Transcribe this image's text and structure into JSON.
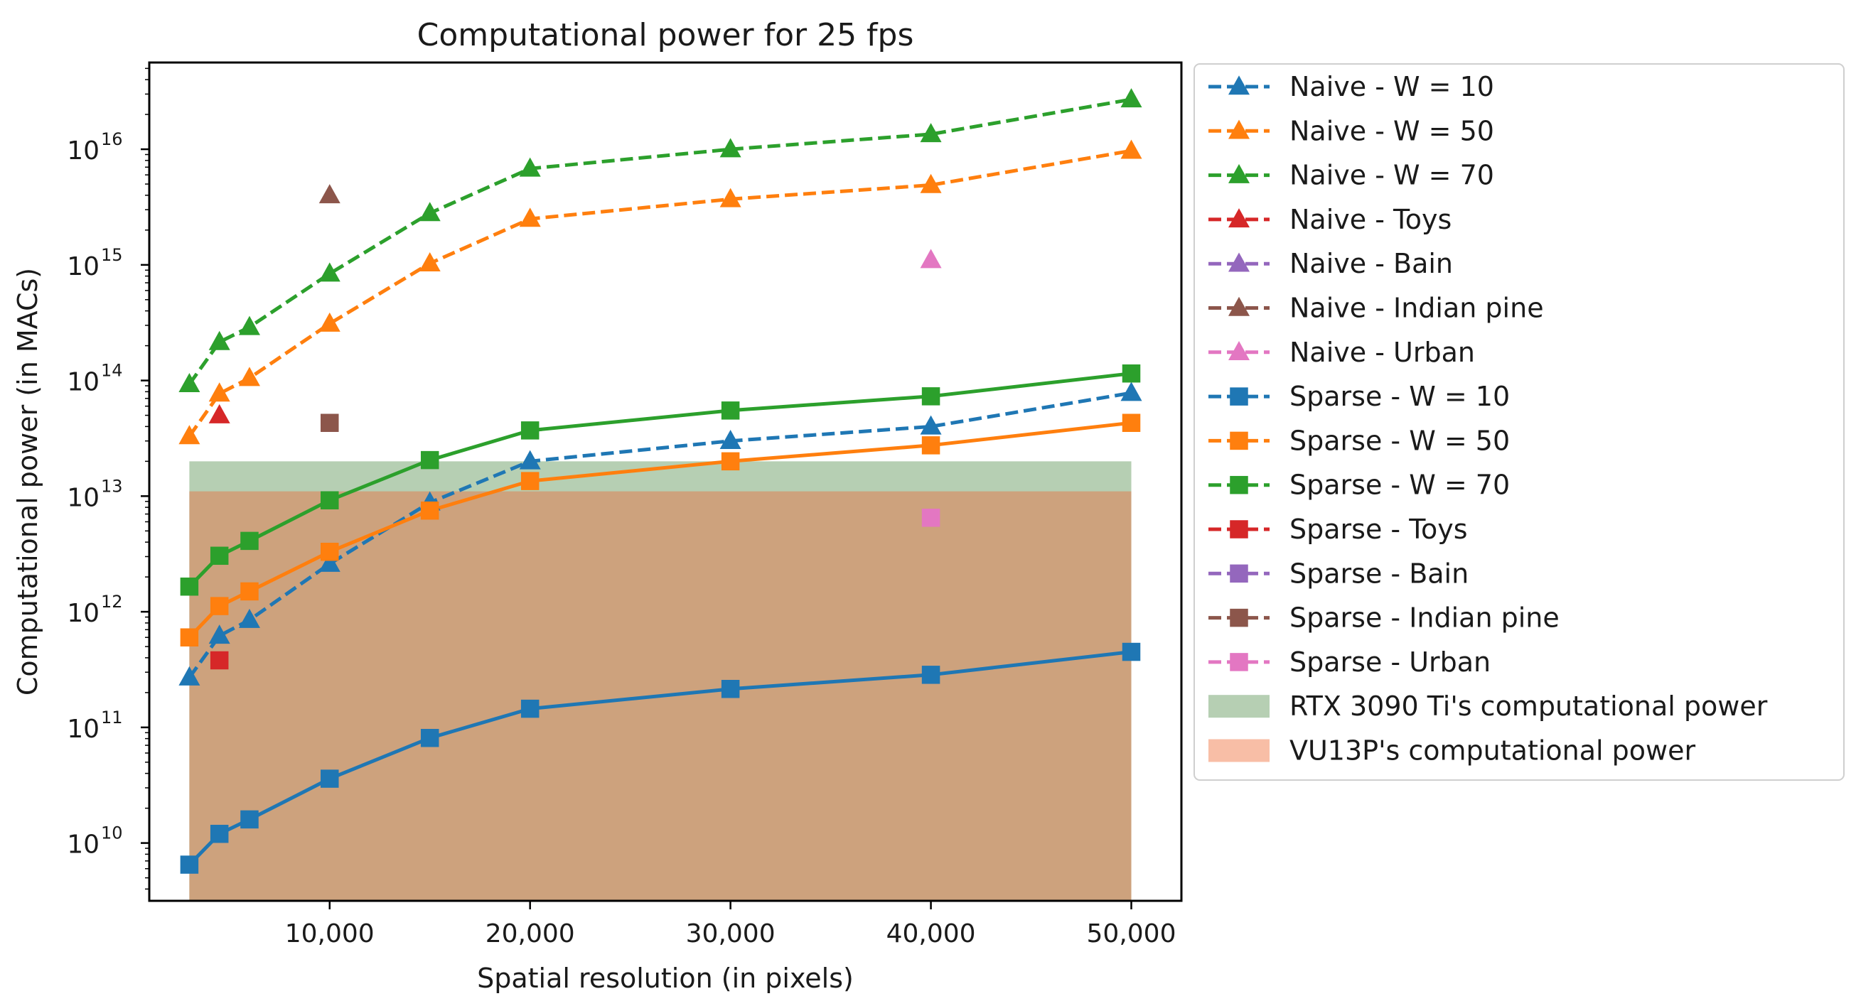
{
  "chart_data": {
    "type": "line",
    "title": "Computational power for 25 fps",
    "xlabel": "Spatial resolution (in pixels)",
    "ylabel": "Computational power (in MACs)",
    "xscale": "linear",
    "yscale": "log",
    "xlim": [
      1000,
      52500
    ],
    "ylim_log10": [
      9.5,
      16.75
    ],
    "xticks": [
      10000,
      20000,
      30000,
      40000,
      50000
    ],
    "xtick_labels": [
      "10,000",
      "20,000",
      "30,000",
      "40,000",
      "50,000"
    ],
    "yticks": [
      {
        "base": "10",
        "exp": "10",
        "value": 10000000000.0
      },
      {
        "base": "10",
        "exp": "11",
        "value": 100000000000.0
      },
      {
        "base": "10",
        "exp": "12",
        "value": 1000000000000.0
      },
      {
        "base": "10",
        "exp": "13",
        "value": 10000000000000.0
      },
      {
        "base": "10",
        "exp": "14",
        "value": 100000000000000.0
      },
      {
        "base": "10",
        "exp": "15",
        "value": 1000000000000000.0
      },
      {
        "base": "10",
        "exp": "16",
        "value": 1e+16
      }
    ],
    "grid": false,
    "legend_position": "outside-right",
    "series": [
      {
        "name": "Naive - W = 10",
        "color": "#1f77b4",
        "marker": "triangle",
        "line": "dashed",
        "x": [
          3000,
          4500,
          6000,
          10000,
          15000,
          20000,
          30000,
          40000,
          50000
        ],
        "y": [
          270000000000.0,
          620000000000.0,
          850000000000.0,
          2600000000000.0,
          8800000000000.0,
          20000000000000.0,
          30000000000000.0,
          40000000000000.0,
          78000000000000.0
        ]
      },
      {
        "name": "Naive - W = 50",
        "color": "#ff7f0e",
        "marker": "triangle",
        "line": "dashed",
        "x": [
          3000,
          4500,
          6000,
          10000,
          15000,
          20000,
          30000,
          40000,
          50000
        ],
        "y": [
          33000000000000.0,
          77000000000000.0,
          105000000000000.0,
          310000000000000.0,
          1030000000000000.0,
          2500000000000000.0,
          3700000000000000.0,
          4900000000000000.0,
          9700000000000000.0
        ]
      },
      {
        "name": "Naive - W = 70",
        "color": "#2ca02c",
        "marker": "triangle",
        "line": "dashed",
        "x": [
          3000,
          4500,
          6000,
          10000,
          15000,
          20000,
          30000,
          40000,
          50000
        ],
        "y": [
          93000000000000.0,
          215000000000000.0,
          290000000000000.0,
          840000000000000.0,
          2800000000000000.0,
          6800000000000000.0,
          1e+16,
          1.35e+16,
          2.7e+16
        ]
      },
      {
        "name": "Naive - Toys",
        "color": "#d62728",
        "marker": "triangle",
        "line": "dashed",
        "x": [
          4500
        ],
        "y": [
          50000000000000.0
        ]
      },
      {
        "name": "Naive - Bain",
        "color": "#9467bd",
        "marker": "triangle",
        "line": "dashed",
        "x": [],
        "y": []
      },
      {
        "name": "Naive - Indian pine",
        "color": "#8c564b",
        "marker": "triangle",
        "line": "dashed",
        "x": [
          10000
        ],
        "y": [
          4000000000000000.0
        ]
      },
      {
        "name": "Naive - Urban",
        "color": "#e377c2",
        "marker": "triangle",
        "line": "dashed",
        "x": [
          40000
        ],
        "y": [
          1100000000000000.0
        ]
      },
      {
        "name": "Sparse - W = 10",
        "color": "#1f77b4",
        "marker": "square",
        "line": "solid",
        "x": [
          3000,
          4500,
          6000,
          10000,
          15000,
          20000,
          30000,
          40000,
          50000
        ],
        "y": [
          6500000000.0,
          12000000000.0,
          16000000000.0,
          36000000000.0,
          81000000000.0,
          145000000000.0,
          215000000000.0,
          285000000000.0,
          450000000000.0
        ]
      },
      {
        "name": "Sparse - W = 50",
        "color": "#ff7f0e",
        "marker": "square",
        "line": "solid",
        "x": [
          3000,
          4500,
          6000,
          10000,
          15000,
          20000,
          30000,
          40000,
          50000
        ],
        "y": [
          600000000000.0,
          1120000000000.0,
          1500000000000.0,
          3300000000000.0,
          7500000000000.0,
          13500000000000.0,
          20000000000000.0,
          27500000000000.0,
          43000000000000.0
        ]
      },
      {
        "name": "Sparse - W = 70",
        "color": "#2ca02c",
        "marker": "square",
        "line": "solid",
        "x": [
          3000,
          4500,
          6000,
          10000,
          15000,
          20000,
          30000,
          40000,
          50000
        ],
        "y": [
          1650000000000.0,
          3050000000000.0,
          4100000000000.0,
          9200000000000.0,
          20500000000000.0,
          37000000000000.0,
          55000000000000.0,
          73000000000000.0,
          115000000000000.0
        ]
      },
      {
        "name": "Sparse - Toys",
        "color": "#d62728",
        "marker": "square",
        "line": "solid",
        "x": [
          4500
        ],
        "y": [
          380000000000.0
        ]
      },
      {
        "name": "Sparse - Bain",
        "color": "#9467bd",
        "marker": "square",
        "line": "solid",
        "x": [],
        "y": []
      },
      {
        "name": "Sparse - Indian pine",
        "color": "#8c564b",
        "marker": "square",
        "line": "solid",
        "x": [
          10000
        ],
        "y": [
          43000000000000.0
        ]
      },
      {
        "name": "Sparse - Urban",
        "color": "#e377c2",
        "marker": "square",
        "line": "solid",
        "x": [
          40000
        ],
        "y": [
          6500000000000.0
        ]
      }
    ],
    "bands": [
      {
        "name": "RTX 3090 Ti's computational power",
        "color": "#b6cfb3",
        "x_from": 3000,
        "x_to": 50000,
        "y_top": 20000000000000.0
      },
      {
        "name": "VU13P's computational power",
        "color": "#f8bea6",
        "x_from": 3000,
        "x_to": 50000,
        "y_top": 11000000000000.0
      }
    ],
    "band_overlap_color": "#cda27d"
  }
}
